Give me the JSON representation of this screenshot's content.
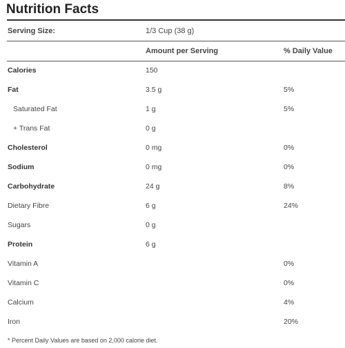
{
  "title": "Nutrition Facts",
  "serving": {
    "label": "Serving Size:",
    "value": "1/3 Cup (38 g)"
  },
  "columns": {
    "amount": "Amount per Serving",
    "daily_value": "% Daily Value"
  },
  "rows": [
    {
      "name": "Calories",
      "amount": "150",
      "dv": ""
    },
    {
      "name": "Fat",
      "amount": "3.5 g",
      "dv": "5%"
    },
    {
      "name": "Saturated Fat",
      "amount": "1 g",
      "dv": "5%"
    },
    {
      "name": "+ Trans Fat",
      "amount": "0 g",
      "dv": ""
    },
    {
      "name": "Cholesterol",
      "amount": "0 mg",
      "dv": "0%"
    },
    {
      "name": "Sodium",
      "amount": "0 mg",
      "dv": "0%"
    },
    {
      "name": "Carbohydrate",
      "amount": "24 g",
      "dv": "8%"
    },
    {
      "name": "Dietary Fibre",
      "amount": "6 g",
      "dv": "24%"
    },
    {
      "name": "Sugars",
      "amount": "0 g",
      "dv": ""
    },
    {
      "name": "Protein",
      "amount": "6 g",
      "dv": ""
    },
    {
      "name": "Vitamin A",
      "amount": "",
      "dv": "0%"
    },
    {
      "name": "Vitamin C",
      "amount": "",
      "dv": "0%"
    },
    {
      "name": "Calcium",
      "amount": "",
      "dv": "4%"
    },
    {
      "name": "Iron",
      "amount": "",
      "dv": "20%"
    }
  ],
  "footnote": "* Percent Daily Values are based on 2,000 calorie diet."
}
